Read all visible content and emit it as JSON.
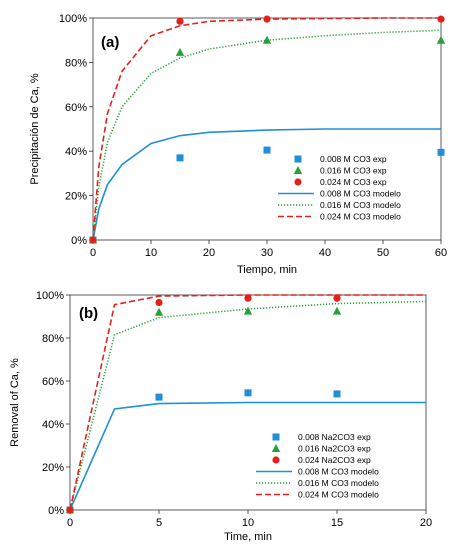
{
  "chart_data": [
    {
      "type": "line",
      "panel_label": "(a)",
      "xlabel": "Tiempo, min",
      "ylabel": "Precipitación de Ca, %",
      "xlim": [
        0,
        60
      ],
      "ylim": [
        0,
        100
      ],
      "xticks": [
        "0",
        "10",
        "20",
        "30",
        "40",
        "50",
        "60"
      ],
      "yticks": [
        "0%",
        "20%",
        "40%",
        "60%",
        "80%",
        "100%"
      ],
      "legend_position": "bottom-right",
      "series": [
        {
          "name": "0.008 M CO3 exp",
          "kind": "marker",
          "marker": "square",
          "color": "#1f8fd8",
          "x": [
            0,
            15,
            30,
            60
          ],
          "y": [
            0,
            37,
            40.5,
            39.5
          ]
        },
        {
          "name": "0.016 M CO3 exp",
          "kind": "marker",
          "marker": "triangle",
          "color": "#27a23a",
          "x": [
            0,
            15,
            30,
            60
          ],
          "y": [
            0,
            84.5,
            90,
            90
          ]
        },
        {
          "name": "0.024 M CO3 exp",
          "kind": "marker",
          "marker": "circle",
          "color": "#e3231b",
          "x": [
            0,
            15,
            30,
            60
          ],
          "y": [
            0,
            98.5,
            99.5,
            99.5
          ]
        },
        {
          "name": "0.008 M CO3 modelo",
          "kind": "line",
          "dash": "solid",
          "color": "#1f8fd8",
          "x": [
            0,
            1,
            2.5,
            5,
            10,
            15,
            20,
            30,
            40,
            50,
            60
          ],
          "y": [
            0,
            14,
            25,
            34,
            43.5,
            47,
            48.5,
            49.5,
            50,
            50,
            50
          ]
        },
        {
          "name": "0.016 M CO3 modelo",
          "kind": "line",
          "dash": "dotted",
          "color": "#27a23a",
          "x": [
            0,
            1,
            2.5,
            5,
            10,
            15,
            20,
            30,
            40,
            50,
            60
          ],
          "y": [
            0,
            24,
            44,
            60,
            75,
            82,
            86,
            90,
            92,
            93.5,
            94.5
          ]
        },
        {
          "name": "0.024 M CO3 modelo",
          "kind": "line",
          "dash": "dashed",
          "color": "#e3231b",
          "x": [
            0,
            1,
            2.5,
            5,
            10,
            15,
            20,
            30,
            40,
            50,
            60
          ],
          "y": [
            0,
            33,
            57,
            76,
            92,
            96.5,
            98.5,
            99.5,
            99.8,
            100,
            100
          ]
        }
      ]
    },
    {
      "type": "line",
      "panel_label": "(b)",
      "xlabel": "Time, min",
      "ylabel": "Removal of Ca, %",
      "xlim": [
        0,
        20
      ],
      "ylim": [
        0,
        100
      ],
      "xticks": [
        "0",
        "5",
        "10",
        "15",
        "20"
      ],
      "yticks": [
        "0%",
        "20%",
        "40%",
        "60%",
        "80%",
        "100%"
      ],
      "legend_position": "bottom-right",
      "series": [
        {
          "name": "0.008 Na2CO3 exp",
          "kind": "marker",
          "marker": "square",
          "color": "#1f8fd8",
          "x": [
            0,
            5,
            10,
            15
          ],
          "y": [
            0,
            52.5,
            54.5,
            54
          ]
        },
        {
          "name": "0.016 Na2CO3 exp",
          "kind": "marker",
          "marker": "triangle",
          "color": "#27a23a",
          "x": [
            0,
            5,
            10,
            15
          ],
          "y": [
            0,
            92,
            92.5,
            92.5
          ]
        },
        {
          "name": "0.024 Na2CO3 exp",
          "kind": "marker",
          "marker": "circle",
          "color": "#e3231b",
          "x": [
            0,
            5,
            10,
            15
          ],
          "y": [
            0,
            96.5,
            98.5,
            98.5
          ]
        },
        {
          "name": "0.008 M CO3 modelo",
          "kind": "line",
          "dash": "solid",
          "color": "#1f8fd8",
          "x": [
            0,
            2.5,
            5,
            10,
            15,
            20
          ],
          "y": [
            0,
            47,
            49.5,
            50,
            50,
            50
          ]
        },
        {
          "name": "0.016 M CO3  modelo",
          "kind": "line",
          "dash": "dotted",
          "color": "#27a23a",
          "x": [
            0,
            2.5,
            5,
            10,
            15,
            20
          ],
          "y": [
            0,
            81.5,
            89.5,
            93.5,
            96,
            97
          ]
        },
        {
          "name": "0.024 M CO3 modelo",
          "kind": "line",
          "dash": "dashed",
          "color": "#e3231b",
          "x": [
            0,
            2.5,
            5,
            10,
            15,
            20
          ],
          "y": [
            0,
            95.5,
            99.5,
            100,
            100,
            100
          ]
        }
      ]
    }
  ]
}
